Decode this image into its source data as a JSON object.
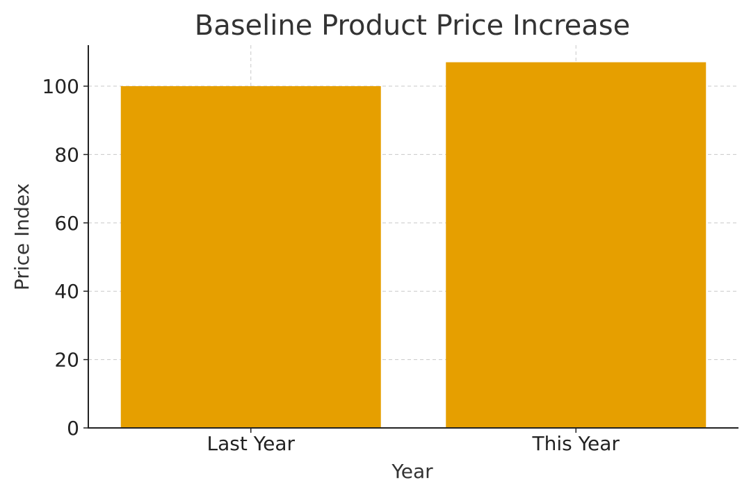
{
  "chart_data": {
    "type": "bar",
    "title": "Baseline Product Price Increase",
    "xlabel": "Year",
    "ylabel": "Price Index",
    "categories": [
      "Last Year",
      "This Year"
    ],
    "values": [
      100,
      107
    ],
    "ylim": [
      0,
      112
    ],
    "yticks": [
      0,
      20,
      40,
      60,
      80,
      100
    ],
    "grid": true,
    "bar_color": "#e69f00"
  }
}
